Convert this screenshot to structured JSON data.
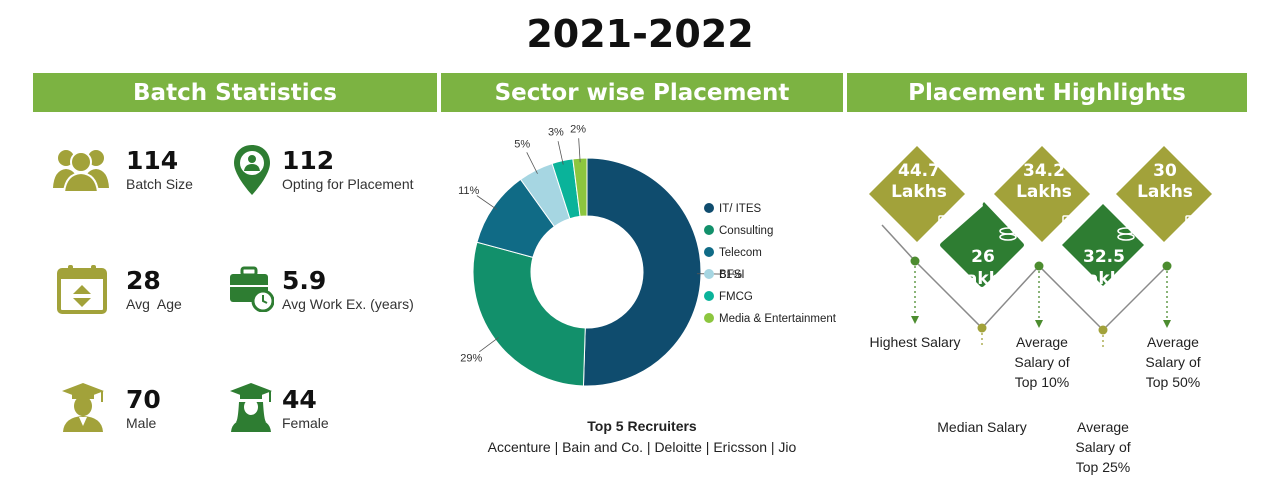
{
  "title": "2021-2022",
  "sections": {
    "batch": "Batch Statistics",
    "sector": "Sector wise Placement",
    "highlights": "Placement Highlights"
  },
  "stats": {
    "batch_size": {
      "value": "114",
      "label": "Batch Size"
    },
    "opting": {
      "value": "112",
      "label": "Opting for Placement"
    },
    "avg_age": {
      "value": "28",
      "label": "Avg  Age"
    },
    "work_ex": {
      "value": "5.9",
      "label": "Avg Work Ex. (years)"
    },
    "male": {
      "value": "70",
      "label": "Male"
    },
    "female": {
      "value": "44",
      "label": "Female"
    }
  },
  "chart_data": {
    "type": "pie",
    "title": "",
    "categories": [
      "IT/ ITES",
      "Consulting",
      "Telecom",
      "BFSI",
      "FMCG",
      "Media & Entertainment"
    ],
    "values": [
      51,
      29,
      11,
      5,
      3,
      2
    ],
    "value_labels": [
      "51%",
      "29%",
      "11%",
      "5%",
      "3%",
      "2%"
    ],
    "colors": [
      "#0f4c6e",
      "#12906b",
      "#106b86",
      "#a6d6e2",
      "#0ab39a",
      "#8cc63f"
    ],
    "legend_position": "right"
  },
  "recruiters": {
    "title": "Top 5 Recruiters",
    "list": "Accenture | Bain and Co. | Deloitte | Ericsson | Jio"
  },
  "highlights": {
    "highest": {
      "value": "44.7",
      "unit": "Lakhs",
      "label": "Highest Salary"
    },
    "median": {
      "value": "26",
      "unit": "Lakhs",
      "label": "Median Salary"
    },
    "top10": {
      "value": "34.2",
      "unit": "Lakhs",
      "label_lines": [
        "Average",
        "Salary of",
        "Top 10%"
      ]
    },
    "top25": {
      "value": "32.5",
      "unit": "Lakhs",
      "label_lines": [
        "Average",
        "Salary of",
        "Top 25%"
      ]
    },
    "top50": {
      "value": "30",
      "unit": "Lakhs",
      "label_lines": [
        "Average",
        "Salary of",
        "Top 50%"
      ]
    }
  },
  "colors": {
    "green_bar": "#7cb342",
    "olive": "#a2a23a",
    "dark_green": "#2e7d32"
  }
}
